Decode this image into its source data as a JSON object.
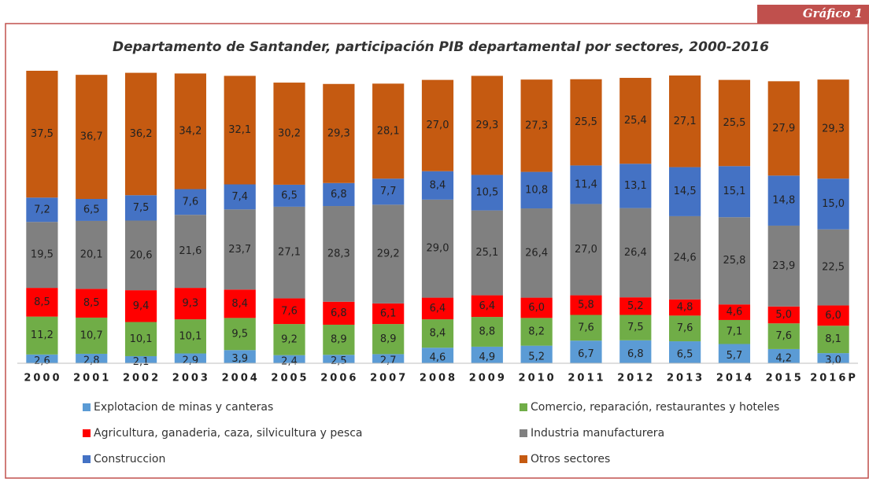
{
  "badge": "Gráfico 1",
  "chart_data": {
    "type": "stacked_bar",
    "title": "Departamento de Santander, participación PIB departamental por sectores, 2000-2016",
    "categories": [
      "2000",
      "2001",
      "2002",
      "2003",
      "2004",
      "2005",
      "2006",
      "2007",
      "2008",
      "2009",
      "2010",
      "2011",
      "2012",
      "2013",
      "2014",
      "2015",
      "2016P"
    ],
    "series": [
      {
        "name": "Explotacion de minas y canteras",
        "color": "#5b9bd5",
        "values": [
          2.6,
          2.8,
          2.1,
          2.9,
          3.9,
          2.4,
          2.5,
          2.7,
          4.6,
          4.9,
          5.2,
          6.7,
          6.8,
          6.5,
          5.7,
          4.2,
          3.0
        ],
        "value_labels": [
          "2,6",
          "2,8",
          "2,1",
          "2,9",
          "3,9",
          "2,4",
          "2,5",
          "2,7",
          "4,6",
          "4,9",
          "5,2",
          "6,7",
          "6,8",
          "6,5",
          "5,7",
          "4,2",
          "3,0"
        ]
      },
      {
        "name": "Comercio, reparación, restaurantes y hoteles",
        "color": "#70ad47",
        "values": [
          11.2,
          10.7,
          10.1,
          10.1,
          9.5,
          9.2,
          8.9,
          8.9,
          8.4,
          8.8,
          8.2,
          7.6,
          7.5,
          7.6,
          7.1,
          7.6,
          8.1
        ],
        "value_labels": [
          "11,2",
          "10,7",
          "10,1",
          "10,1",
          "9,5",
          "9,2",
          "8,9",
          "8,9",
          "8,4",
          "8,8",
          "8,2",
          "7,6",
          "7,5",
          "7,6",
          "7,1",
          "7,6",
          "8,1"
        ]
      },
      {
        "name": "Agricultura, ganaderia, caza, silvicultura y pesca",
        "color": "#ff0000",
        "values": [
          8.5,
          8.5,
          9.4,
          9.3,
          8.4,
          7.6,
          6.8,
          6.1,
          6.4,
          6.4,
          6.0,
          5.8,
          5.2,
          4.8,
          4.6,
          5.0,
          6.0
        ],
        "value_labels": [
          "8,5",
          "8,5",
          "9,4",
          "9,3",
          "8,4",
          "7,6",
          "6,8",
          "6,1",
          "6,4",
          "6,4",
          "6,0",
          "5,8",
          "5,2",
          "4,8",
          "4,6",
          "5,0",
          "6,0"
        ]
      },
      {
        "name": "Industria manufacturera",
        "color": "#808080",
        "values": [
          19.5,
          20.1,
          20.6,
          21.6,
          23.7,
          27.1,
          28.3,
          29.2,
          29.0,
          25.1,
          26.4,
          27.0,
          26.4,
          24.6,
          25.8,
          23.9,
          22.5
        ],
        "value_labels": [
          "19,5",
          "20,1",
          "20,6",
          "21,6",
          "23,7",
          "27,1",
          "28,3",
          "29,2",
          "29,0",
          "25,1",
          "26,4",
          "27,0",
          "26,4",
          "24,6",
          "25,8",
          "23,9",
          "22,5"
        ]
      },
      {
        "name": "Construccion",
        "color": "#4472c4",
        "values": [
          7.2,
          6.5,
          7.5,
          7.6,
          7.4,
          6.5,
          6.8,
          7.7,
          8.4,
          10.5,
          10.8,
          11.4,
          13.1,
          14.5,
          15.1,
          14.8,
          15.0
        ],
        "value_labels": [
          "7,2",
          "6,5",
          "7,5",
          "7,6",
          "7,4",
          "6,5",
          "6,8",
          "7,7",
          "8,4",
          "10,5",
          "10,8",
          "11,4",
          "13,1",
          "14,5",
          "15,1",
          "14,8",
          "15,0"
        ]
      },
      {
        "name": "Otros sectores",
        "color": "#c55a11",
        "values": [
          37.5,
          36.7,
          36.2,
          34.2,
          32.1,
          30.2,
          29.3,
          28.1,
          27.0,
          29.3,
          27.3,
          25.5,
          25.4,
          27.1,
          25.5,
          27.9,
          29.3
        ],
        "value_labels": [
          "37,5",
          "36,7",
          "36,2",
          "34,2",
          "32,1",
          "30,2",
          "29,3",
          "28,1",
          "27,0",
          "29,3",
          "27,3",
          "25,5",
          "25,4",
          "27,1",
          "25,5",
          "27,9",
          "29,3"
        ]
      }
    ]
  }
}
